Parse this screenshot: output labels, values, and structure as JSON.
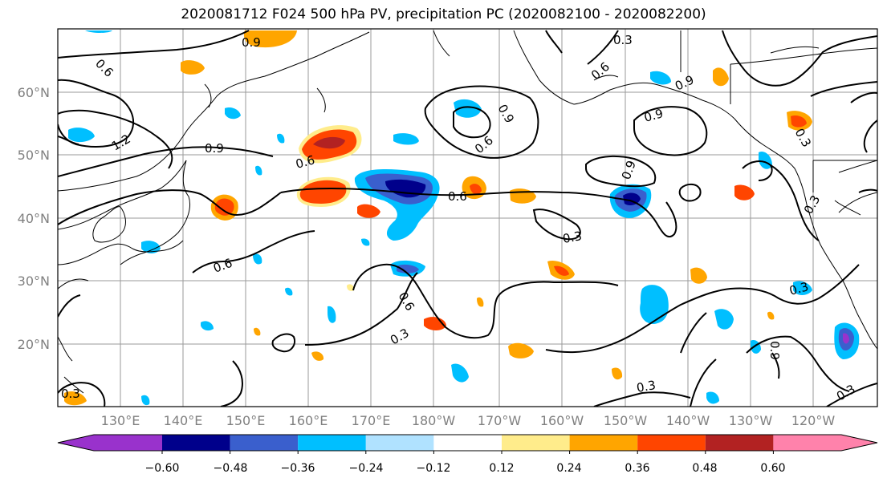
{
  "title": "2020081712 F024 500 hPa PV, precipitation PC (2020082100 - 2020082200)",
  "map": {
    "lat_labels": [
      "20°N",
      "30°N",
      "40°N",
      "50°N",
      "60°N"
    ],
    "lon_labels": [
      "130°E",
      "140°E",
      "150°E",
      "160°E",
      "170°E",
      "180°W",
      "170°W",
      "160°W",
      "150°W",
      "140°W",
      "130°W",
      "120°W"
    ],
    "contour_labels": [
      "0.9",
      "0.6",
      "1.2",
      "0.9",
      "0.6",
      "0.6",
      "0.3",
      "0.6",
      "0.3",
      "0.6",
      "0.9",
      "0.6",
      "0.9",
      "0.9",
      "0.3",
      "0.6",
      "0.9",
      "0.3",
      "0.3",
      "0.3",
      "0.3",
      "0.3",
      "0.9",
      "0.3"
    ]
  },
  "colorbar": {
    "ticks": [
      "−0.60",
      "−0.48",
      "−0.36",
      "−0.24",
      "−0.12",
      "0.12",
      "0.24",
      "0.36",
      "0.48",
      "0.60"
    ],
    "colors": [
      "#9932cc",
      "#00008b",
      "#3a5fcd",
      "#00bfff",
      "#b0e2ff",
      "#ffffff",
      "#ffec8b",
      "#ffa500",
      "#ff4500",
      "#b22222",
      "#ff82ab"
    ]
  }
}
